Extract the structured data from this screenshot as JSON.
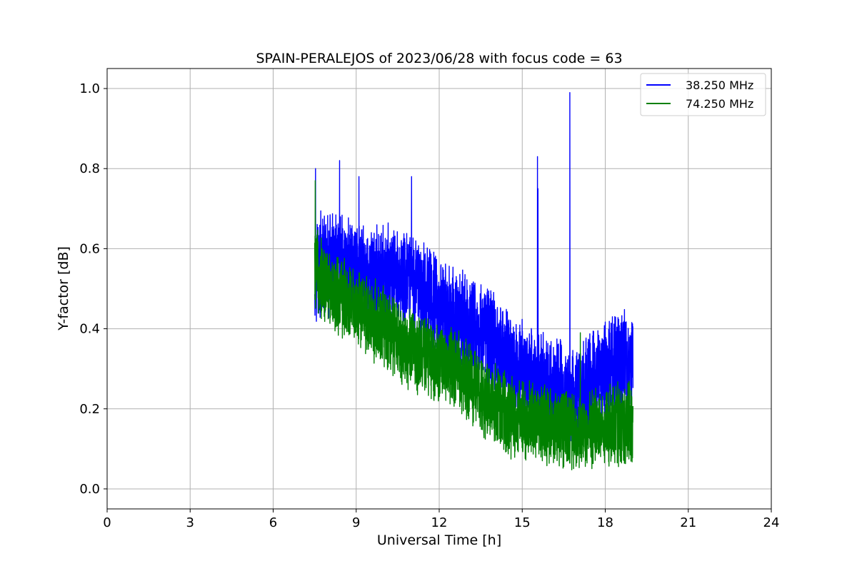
{
  "chart_data": {
    "type": "line",
    "title": "SPAIN-PERALEJOS of 2023/06/28 with focus code = 63",
    "xlabel": "Universal Time [h]",
    "ylabel": "Y-factor [dB]",
    "xlim": [
      0,
      24
    ],
    "ylim": [
      -0.05,
      1.05
    ],
    "xticks": [
      0,
      3,
      6,
      9,
      12,
      15,
      18,
      21,
      24
    ],
    "xtick_labels": [
      "0",
      "3",
      "6",
      "9",
      "12",
      "15",
      "18",
      "21",
      "24"
    ],
    "yticks": [
      0.0,
      0.2,
      0.4,
      0.6,
      0.8,
      1.0
    ],
    "ytick_labels": [
      "0.0",
      "0.2",
      "0.4",
      "0.6",
      "0.8",
      "1.0"
    ],
    "grid": true,
    "legend_position": "top-right",
    "series": [
      {
        "name": "38.250 MHz",
        "color": "#0000ff",
        "x_range": [
          7.5,
          19.0
        ],
        "trend": [
          [
            7.5,
            0.56
          ],
          [
            8.0,
            0.55
          ],
          [
            8.5,
            0.56
          ],
          [
            9.0,
            0.54
          ],
          [
            9.5,
            0.52
          ],
          [
            10.0,
            0.52
          ],
          [
            10.5,
            0.53
          ],
          [
            11.0,
            0.52
          ],
          [
            11.5,
            0.49
          ],
          [
            12.0,
            0.45
          ],
          [
            12.5,
            0.42
          ],
          [
            13.0,
            0.41
          ],
          [
            13.5,
            0.39
          ],
          [
            14.0,
            0.37
          ],
          [
            14.5,
            0.33
          ],
          [
            15.0,
            0.29
          ],
          [
            15.5,
            0.27
          ],
          [
            16.0,
            0.25
          ],
          [
            16.5,
            0.24
          ],
          [
            17.0,
            0.22
          ],
          [
            17.5,
            0.27
          ],
          [
            18.0,
            0.3
          ],
          [
            18.5,
            0.31
          ],
          [
            19.0,
            0.32
          ]
        ],
        "spikes": [
          [
            7.53,
            0.8
          ],
          [
            8.4,
            0.82
          ],
          [
            9.1,
            0.78
          ],
          [
            11.0,
            0.78
          ],
          [
            15.55,
            0.83
          ],
          [
            15.57,
            0.75
          ],
          [
            16.72,
            0.99
          ],
          [
            16.8,
            0.23
          ]
        ]
      },
      {
        "name": "74.250 MHz",
        "color": "#008000",
        "x_range": [
          7.5,
          19.0
        ],
        "trend": [
          [
            7.5,
            0.55
          ],
          [
            8.0,
            0.5
          ],
          [
            8.5,
            0.48
          ],
          [
            9.0,
            0.45
          ],
          [
            9.5,
            0.43
          ],
          [
            10.0,
            0.4
          ],
          [
            10.5,
            0.37
          ],
          [
            11.0,
            0.35
          ],
          [
            11.5,
            0.33
          ],
          [
            12.0,
            0.32
          ],
          [
            12.5,
            0.3
          ],
          [
            13.0,
            0.27
          ],
          [
            13.5,
            0.24
          ],
          [
            14.0,
            0.21
          ],
          [
            14.5,
            0.18
          ],
          [
            15.0,
            0.17
          ],
          [
            15.5,
            0.17
          ],
          [
            16.0,
            0.16
          ],
          [
            16.5,
            0.15
          ],
          [
            17.0,
            0.15
          ],
          [
            17.5,
            0.15
          ],
          [
            18.0,
            0.15
          ],
          [
            18.5,
            0.16
          ],
          [
            19.0,
            0.17
          ]
        ],
        "spikes": [
          [
            7.52,
            0.77
          ],
          [
            17.1,
            0.39
          ]
        ]
      }
    ]
  }
}
